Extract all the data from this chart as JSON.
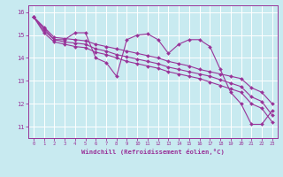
{
  "bg_color": "#c8eaf0",
  "grid_color": "#ffffff",
  "line_color": "#993399",
  "xlabel": "Windchill (Refroidissement éolien,°C)",
  "xlim": [
    -0.5,
    23.5
  ],
  "ylim": [
    10.5,
    16.3
  ],
  "yticks": [
    11,
    12,
    13,
    14,
    15,
    16
  ],
  "xticks": [
    0,
    1,
    2,
    3,
    4,
    5,
    6,
    7,
    8,
    9,
    10,
    11,
    12,
    13,
    14,
    15,
    16,
    17,
    18,
    19,
    20,
    21,
    22,
    23
  ],
  "series": [
    [
      15.8,
      15.3,
      14.8,
      14.8,
      15.1,
      15.1,
      14.0,
      13.8,
      13.2,
      14.8,
      15.0,
      15.05,
      14.8,
      14.2,
      14.6,
      14.8,
      14.8,
      14.5,
      13.5,
      12.5,
      12.0,
      11.1,
      11.1,
      11.7
    ],
    [
      15.8,
      15.35,
      14.9,
      14.85,
      14.8,
      14.75,
      14.6,
      14.5,
      14.4,
      14.3,
      14.2,
      14.1,
      14.0,
      13.85,
      13.75,
      13.65,
      13.5,
      13.4,
      13.3,
      13.2,
      13.1,
      12.7,
      12.5,
      12.0
    ],
    [
      15.8,
      15.2,
      14.8,
      14.7,
      14.65,
      14.6,
      14.4,
      14.3,
      14.15,
      14.05,
      13.95,
      13.85,
      13.75,
      13.6,
      13.5,
      13.4,
      13.3,
      13.2,
      13.05,
      12.9,
      12.75,
      12.3,
      12.1,
      11.5
    ],
    [
      15.8,
      15.1,
      14.7,
      14.6,
      14.5,
      14.45,
      14.25,
      14.15,
      14.0,
      13.85,
      13.75,
      13.65,
      13.55,
      13.4,
      13.3,
      13.2,
      13.1,
      12.95,
      12.8,
      12.65,
      12.5,
      12.0,
      11.8,
      11.2
    ]
  ],
  "marker": "D",
  "markersize": 2.0,
  "linewidth": 0.8
}
